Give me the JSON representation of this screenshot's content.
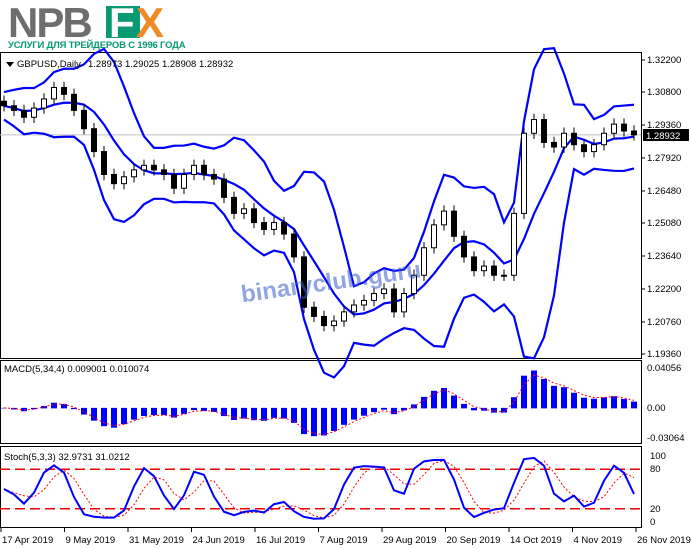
{
  "brand": {
    "logo_text": "NPBFX",
    "tagline": "УСЛУГИ ДЛЯ ТРЕЙДЕРОВ С 1996 ГОДА",
    "colors": {
      "gray": "#6d6e70",
      "green": "#0a9a73",
      "orange": "#f08a24"
    }
  },
  "watermark": "binaryclub.guru",
  "chart_data": [
    {
      "type": "candlestick",
      "title": "GBPUSD,Daily",
      "ohlc_label": "1.28973 1.29025 1.28908 1.28932",
      "current_price": "1.28932",
      "ylim": [
        1.1936,
        1.322
      ],
      "yticks": [
        "1.32200",
        "1.30800",
        "1.29360",
        "1.27920",
        "1.26480",
        "1.25080",
        "1.23640",
        "1.22200",
        "1.20760",
        "1.19360"
      ],
      "indicator": "Bollinger Bands",
      "band_color": "#0000ff",
      "closes": [
        1.302,
        1.3,
        1.297,
        1.301,
        1.305,
        1.31,
        1.307,
        1.3,
        1.292,
        1.282,
        1.272,
        1.268,
        1.271,
        1.274,
        1.276,
        1.274,
        1.272,
        1.266,
        1.272,
        1.276,
        1.272,
        1.27,
        1.262,
        1.255,
        1.257,
        1.251,
        1.248,
        1.251,
        1.246,
        1.236,
        1.214,
        1.21,
        1.206,
        1.208,
        1.212,
        1.215,
        1.217,
        1.22,
        1.222,
        1.212,
        1.22,
        1.228,
        1.24,
        1.25,
        1.256,
        1.245,
        1.236,
        1.23,
        1.232,
        1.228,
        1.228,
        1.255,
        1.29,
        1.296,
        1.286,
        1.284,
        1.29,
        1.285,
        1.282,
        1.285,
        1.29,
        1.294,
        1.291,
        1.28932
      ]
    },
    {
      "type": "bar",
      "title": "MACD(5,34,4) 0.009001 0.010074",
      "yticks": [
        "0.04056",
        "0.00",
        "-0.03064"
      ],
      "ylim": [
        -0.03064,
        0.04056
      ],
      "hist_color": "#0000ff",
      "signal_color": "#ff0000"
    },
    {
      "type": "line",
      "title": "Stoch(5,3,3) 32.9731 31.0212",
      "yticks": [
        "100",
        "80",
        "20",
        "0"
      ],
      "ylim": [
        0,
        100
      ],
      "levels": [
        80,
        20
      ],
      "main_color": "#0000ff",
      "signal_color": "#ff0000"
    }
  ],
  "xticks": [
    "17 Apr 2019",
    "9 May 2019",
    "31 May 2019",
    "24 Jun 2019",
    "16 Jul 2019",
    "7 Aug 2019",
    "29 Aug 2019",
    "20 Sep 2019",
    "14 Oct 2019",
    "4 Nov 2019",
    "26 Nov 2019"
  ]
}
